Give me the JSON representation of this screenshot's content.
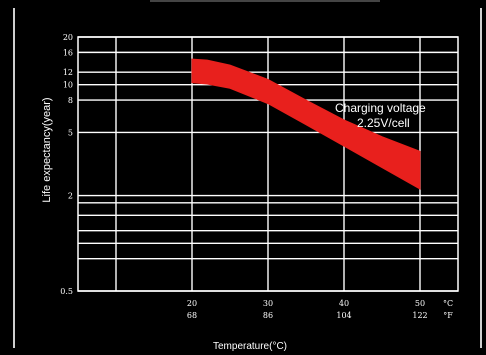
{
  "chart_data": {
    "type": "area",
    "xlabel": "Temperature(°C)",
    "ylabel": "Life expectancy(year)",
    "y_scale": "log",
    "ylim": [
      0.5,
      20
    ],
    "y_ticks": [
      {
        "value": 20,
        "label": "20"
      },
      {
        "value": 16,
        "label": "16"
      },
      {
        "value": 12,
        "label": "12"
      },
      {
        "value": 10,
        "label": "10"
      },
      {
        "value": 8,
        "label": "8"
      },
      {
        "value": 5,
        "label": "5"
      },
      {
        "value": 2,
        "label": "2"
      },
      {
        "value": 0.5,
        "label": "0.5"
      }
    ],
    "y_extra_gridlines": [
      1.8,
      1.5,
      1.2,
      1.0,
      0.8
    ],
    "xlim": [
      5,
      55
    ],
    "x_ticks": [
      {
        "value": 20,
        "c": "20",
        "f": "68"
      },
      {
        "value": 30,
        "c": "30",
        "f": "86"
      },
      {
        "value": 40,
        "c": "40",
        "f": "104"
      },
      {
        "value": 50,
        "c": "50",
        "f": "122"
      }
    ],
    "x_unit_c": "°C",
    "x_unit_f": "°F",
    "x_extra_gridlines": [
      10
    ],
    "grid": true,
    "band": {
      "color": "#e8201d",
      "x": [
        20,
        22,
        25,
        30,
        35,
        40,
        45,
        50
      ],
      "upper": [
        14.5,
        14.3,
        13.3,
        10.8,
        8.0,
        6.0,
        4.7,
        3.8
      ],
      "lower": [
        10.3,
        10.1,
        9.5,
        7.6,
        5.6,
        4.1,
        3.0,
        2.2
      ]
    },
    "annotation": {
      "line1": "Charging voltage",
      "line2": "2.25V/cell"
    }
  }
}
